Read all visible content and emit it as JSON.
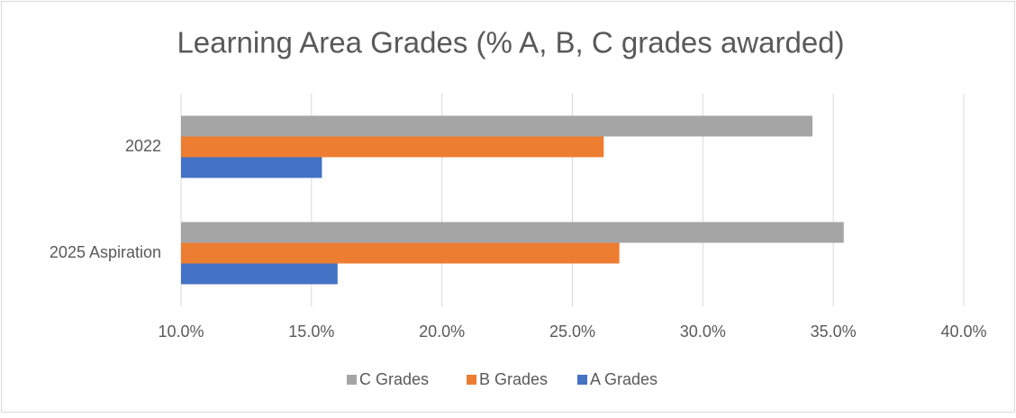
{
  "chart_data": {
    "type": "bar",
    "orientation": "horizontal",
    "title": "Learning Area Grades (% A, B, C grades awarded)",
    "categories": [
      "2022",
      "2025 Aspiration"
    ],
    "series": [
      {
        "name": "C Grades",
        "color": "#a5a5a5",
        "values": [
          34.2,
          35.4
        ]
      },
      {
        "name": "B Grades",
        "color": "#ed7d31",
        "values": [
          26.2,
          26.8
        ]
      },
      {
        "name": "A Grades",
        "color": "#4472c4",
        "values": [
          15.4,
          16.0
        ]
      }
    ],
    "xlim": [
      10,
      40
    ],
    "xticks": [
      {
        "value": 10,
        "label": "10.0%"
      },
      {
        "value": 15,
        "label": "15.0%"
      },
      {
        "value": 20,
        "label": "20.0%"
      },
      {
        "value": 25,
        "label": "25.0%"
      },
      {
        "value": 30,
        "label": "30.0%"
      },
      {
        "value": 35,
        "label": "35.0%"
      },
      {
        "value": 40,
        "label": "40.0%"
      }
    ],
    "grid": true,
    "legend": "bottom"
  }
}
